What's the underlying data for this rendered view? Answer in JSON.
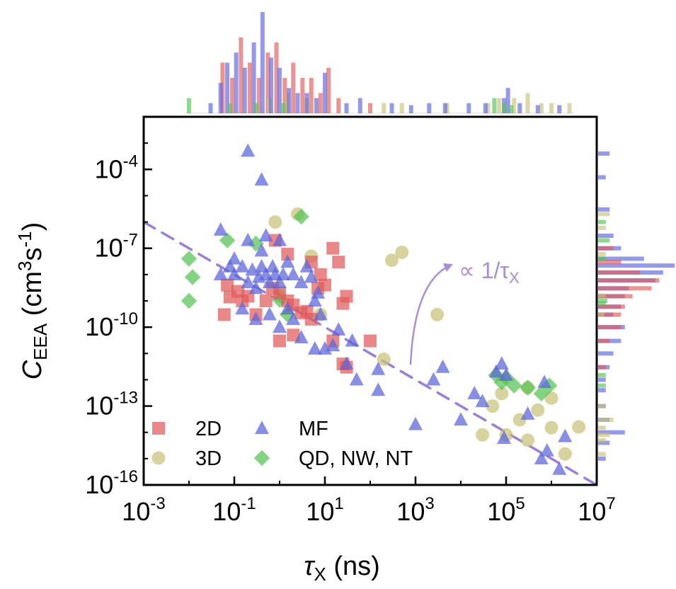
{
  "chart_data": {
    "type": "scatter",
    "title": "",
    "xlabel": {
      "main": "τ",
      "sub": "X",
      "rest": " (ns)"
    },
    "ylabel": {
      "main": "C",
      "sub": "EEA",
      "rest": " (cm",
      "sup": "3",
      "rest2": "s",
      "sup2": "-1",
      "close": ")"
    },
    "x_scale": "log",
    "y_scale": "log",
    "xlim": [
      0.001,
      10000000
    ],
    "ylim": [
      1e-16,
      0.01
    ],
    "x_ticks": [
      {
        "base": "10",
        "exp": "-3",
        "value": 0.001
      },
      {
        "base": "10",
        "exp": "-1",
        "value": 0.1
      },
      {
        "base": "10",
        "exp": "1",
        "value": 10
      },
      {
        "base": "10",
        "exp": "3",
        "value": 1000
      },
      {
        "base": "10",
        "exp": "5",
        "value": 100000
      },
      {
        "base": "10",
        "exp": "7",
        "value": 10000000
      }
    ],
    "y_ticks": [
      {
        "base": "10",
        "exp": "-16",
        "value": 1e-16
      },
      {
        "base": "10",
        "exp": "-13",
        "value": 1e-13
      },
      {
        "base": "10",
        "exp": "-10",
        "value": 1e-10
      },
      {
        "base": "10",
        "exp": "-7",
        "value": 1e-07
      },
      {
        "base": "10",
        "exp": "-4",
        "value": 0.0001
      }
    ],
    "grid": false,
    "legend_position": "bottom-left",
    "annotation": {
      "text": "∝ 1/τ",
      "sub": "X",
      "color": "#a98fcf"
    },
    "trend_line": {
      "style": "dashed",
      "color": "#9b7fd0",
      "points": [
        [
          0.001,
          1e-06
        ],
        [
          10000000,
          1e-16
        ]
      ]
    },
    "colors": {
      "2D": "#e05a5a",
      "3D": "#c8c27a",
      "MF": "#5a64d8",
      "QD": "#55c255"
    },
    "series": [
      {
        "name": "2D",
        "marker": "square",
        "color": "#e05a5a",
        "points": [
          [
            0.07,
            4e-09
          ],
          [
            0.08,
            1.4e-09
          ],
          [
            0.12,
            2.3e-09
          ],
          [
            0.15,
            1e-09
          ],
          [
            0.2,
            1.5e-09
          ],
          [
            0.06,
            3e-10
          ],
          [
            0.3,
            3e-10
          ],
          [
            0.5,
            1e-09
          ],
          [
            0.7,
            3e-09
          ],
          [
            1,
            2e-09
          ],
          [
            1.5,
            1e-09
          ],
          [
            2,
            7e-10
          ],
          [
            3,
            3.5e-10
          ],
          [
            4,
            4e-10
          ],
          [
            5,
            2e-10
          ],
          [
            7,
            3e-09
          ],
          [
            8,
            1e-08
          ],
          [
            10,
            4e-09
          ],
          [
            20,
            3e-08
          ],
          [
            25,
            8e-10
          ],
          [
            30,
            1.5e-09
          ],
          [
            0.8,
            2e-07
          ],
          [
            1.5,
            6e-08
          ],
          [
            5,
            3e-08
          ],
          [
            15,
            1e-07
          ],
          [
            1,
            3e-11
          ],
          [
            2,
            5e-11
          ],
          [
            15,
            3e-11
          ],
          [
            25,
            4e-12
          ],
          [
            30,
            3e-12
          ],
          [
            100,
            3e-11
          ]
        ]
      },
      {
        "name": "3D",
        "marker": "circle",
        "color": "#c8c27a",
        "points": [
          [
            0.8,
            1e-06
          ],
          [
            2.5,
            2e-06
          ],
          [
            1,
            1.6e-09
          ],
          [
            8,
            3e-10
          ],
          [
            5,
            5e-08
          ],
          [
            300,
            3.5e-08
          ],
          [
            500,
            7e-08
          ],
          [
            200,
            6e-12
          ],
          [
            3000,
            3e-10
          ],
          [
            30000,
            8e-15
          ],
          [
            50000,
            1e-13
          ],
          [
            80000,
            3e-13
          ],
          [
            100000,
            8e-15
          ],
          [
            300000,
            5e-15
          ],
          [
            300000,
            5e-13
          ],
          [
            500000,
            7e-14
          ],
          [
            1000000,
            2e-13
          ],
          [
            1000000,
            1.5e-14
          ],
          [
            2000000,
            1.5e-15
          ],
          [
            4000000,
            1.6e-14
          ],
          [
            200000,
            3e-14
          ]
        ]
      },
      {
        "name": "MF",
        "marker": "triangle",
        "color": "#5a64d8",
        "points": [
          [
            0.2,
            0.0005
          ],
          [
            0.4,
            4e-05
          ],
          [
            0.05,
            5e-07
          ],
          [
            0.1,
            1e-08
          ],
          [
            0.15,
            2e-08
          ],
          [
            0.2,
            5e-09
          ],
          [
            0.25,
            1.5e-08
          ],
          [
            0.3,
            3e-09
          ],
          [
            0.35,
            8e-09
          ],
          [
            0.4,
            2e-08
          ],
          [
            0.5,
            1e-08
          ],
          [
            0.6,
            5e-09
          ],
          [
            0.7,
            2e-08
          ],
          [
            0.8,
            1e-08
          ],
          [
            1,
            5e-09
          ],
          [
            1.2,
            1e-08
          ],
          [
            1.5,
            3e-08
          ],
          [
            2,
            1e-08
          ],
          [
            3,
            5e-09
          ],
          [
            4,
            2e-08
          ],
          [
            5,
            8e-09
          ],
          [
            6,
            1e-09
          ],
          [
            7,
            2e-09
          ],
          [
            0.05,
            1e-08
          ],
          [
            0.08,
            2e-08
          ],
          [
            0.1,
            4e-08
          ],
          [
            0.2,
            2e-07
          ],
          [
            0.4,
            8e-08
          ],
          [
            0.5,
            3e-07
          ],
          [
            1,
            2e-07
          ],
          [
            0.15,
            5e-10
          ],
          [
            0.3,
            2e-10
          ],
          [
            0.6,
            3e-10
          ],
          [
            1,
            1e-10
          ],
          [
            1.5,
            5e-10
          ],
          [
            2,
            2e-10
          ],
          [
            3,
            4e-11
          ],
          [
            6,
            1.5e-11
          ],
          [
            8,
            3e-10
          ],
          [
            10,
            1.5e-11
          ],
          [
            15,
            2e-11
          ],
          [
            30,
            4e-12
          ],
          [
            50,
            1e-12
          ],
          [
            150,
            2.5e-12
          ],
          [
            150,
            4e-13
          ],
          [
            20,
            8e-11
          ],
          [
            40,
            3e-11
          ],
          [
            1000,
            2e-14
          ],
          [
            2500,
            1e-12
          ],
          [
            4000,
            3e-12
          ],
          [
            20000,
            3e-13
          ],
          [
            30000,
            1.5e-13
          ],
          [
            60000,
            2e-12
          ],
          [
            80000,
            4e-12
          ],
          [
            90000,
            6e-15
          ],
          [
            100000,
            1.5e-12
          ],
          [
            300000,
            5e-14
          ],
          [
            700000,
            8e-13
          ],
          [
            800000,
            2e-15
          ],
          [
            2000000,
            7e-15
          ],
          [
            1500000,
            4e-16
          ],
          [
            600000,
            1e-15
          ],
          [
            10000,
            3e-14
          ]
        ]
      },
      {
        "name": "QD, NW, NT",
        "marker": "diamond",
        "color": "#55c255",
        "points": [
          [
            0.01,
            4e-08
          ],
          [
            0.012,
            8e-09
          ],
          [
            0.01,
            1e-09
          ],
          [
            0.07,
            2e-07
          ],
          [
            0.3,
            1.5e-07
          ],
          [
            3,
            1.6e-06
          ],
          [
            1,
            1.1e-09
          ],
          [
            1.5,
            3e-10
          ],
          [
            60000,
            1.5e-12
          ],
          [
            80000,
            8e-13
          ],
          [
            100000,
            1.2e-12
          ],
          [
            150000,
            6e-13
          ],
          [
            300000,
            5e-13
          ],
          [
            600000,
            3e-13
          ],
          [
            900000,
            6e-13
          ]
        ]
      }
    ],
    "top_histogram": [
      {
        "name": "2D",
        "color": "#e05a5a",
        "bins": [
          [
            0.055,
            0.5
          ],
          [
            0.09,
            0.35
          ],
          [
            0.14,
            0.75
          ],
          [
            0.22,
            0.5
          ],
          [
            0.35,
            0.35
          ],
          [
            0.55,
            0.6
          ],
          [
            0.85,
            0.7
          ],
          [
            1.3,
            0.35
          ],
          [
            2,
            0.5
          ],
          [
            3.2,
            0.35
          ],
          [
            5,
            0.35
          ],
          [
            8,
            0.2
          ],
          [
            12,
            0.45
          ],
          [
            20,
            0.15
          ],
          [
            100,
            0.1
          ]
        ]
      },
      {
        "name": "3D",
        "color": "#c8c27a",
        "bins": [
          [
            0.6,
            0.15
          ],
          [
            1.5,
            0.2
          ],
          [
            4,
            0.15
          ],
          [
            200,
            0.1
          ],
          [
            500,
            0.1
          ],
          [
            5000,
            0.1
          ],
          [
            40000,
            0.1
          ],
          [
            70000,
            0.15
          ],
          [
            150000,
            0.15
          ],
          [
            300000,
            0.2
          ],
          [
            600000,
            0.1
          ],
          [
            1000000,
            0.1
          ],
          [
            2500000,
            0.1
          ]
        ]
      },
      {
        "name": "MF",
        "color": "#5a64d8",
        "bins": [
          [
            0.03,
            0.1
          ],
          [
            0.05,
            0.3
          ],
          [
            0.07,
            0.5
          ],
          [
            0.11,
            0.6
          ],
          [
            0.17,
            0.45
          ],
          [
            0.27,
            0.7
          ],
          [
            0.42,
            1.0
          ],
          [
            0.65,
            0.55
          ],
          [
            1,
            0.45
          ],
          [
            1.6,
            0.25
          ],
          [
            2.5,
            0.2
          ],
          [
            4,
            0.2
          ],
          [
            6.5,
            0.15
          ],
          [
            10,
            0.4
          ],
          [
            30,
            0.1
          ],
          [
            60,
            0.15
          ],
          [
            300,
            0.1
          ],
          [
            800,
            0.08
          ],
          [
            2000,
            0.1
          ],
          [
            4500,
            0.1
          ],
          [
            15000,
            0.1
          ],
          [
            35000,
            0.1
          ],
          [
            90000,
            0.15
          ],
          [
            110000,
            0.25
          ],
          [
            200000,
            0.1
          ],
          [
            500000,
            0.08
          ],
          [
            1500000,
            0.08
          ]
        ]
      },
      {
        "name": "QD, NW, NT",
        "color": "#55c255",
        "bins": [
          [
            0.01,
            0.15
          ],
          [
            0.08,
            0.1
          ],
          [
            0.3,
            0.1
          ],
          [
            1.2,
            0.1
          ],
          [
            55000,
            0.15
          ],
          [
            90000,
            0.1
          ],
          [
            130000,
            0.08
          ]
        ]
      }
    ],
    "right_histogram": [
      {
        "name": "MF",
        "color": "#5a64d8",
        "bins": [
          [
            0.0004,
            0.15
          ],
          [
            5e-05,
            0.1
          ],
          [
            3e-06,
            0.15
          ],
          [
            3e-07,
            0.2
          ],
          [
            1e-07,
            0.3
          ],
          [
            4e-08,
            0.6
          ],
          [
            2.2e-08,
            1.0
          ],
          [
            1.2e-08,
            0.85
          ],
          [
            6e-09,
            0.75
          ],
          [
            3e-09,
            0.4
          ],
          [
            1.5e-09,
            0.35
          ],
          [
            6e-10,
            0.3
          ],
          [
            3e-10,
            0.2
          ],
          [
            1e-10,
            0.35
          ],
          [
            3e-11,
            0.3
          ],
          [
            1e-11,
            0.2
          ],
          [
            3e-12,
            0.15
          ],
          [
            1e-12,
            0.1
          ],
          [
            4e-13,
            0.1
          ],
          [
            1e-13,
            0.1
          ],
          [
            3e-14,
            0.15
          ],
          [
            1e-14,
            0.35
          ],
          [
            4e-15,
            0.15
          ],
          [
            1e-15,
            0.1
          ]
        ]
      },
      {
        "name": "2D",
        "color": "#e05a5a",
        "bins": [
          [
            1e-07,
            0.2
          ],
          [
            3e-08,
            0.3
          ],
          [
            1.2e-08,
            0.55
          ],
          [
            6e-09,
            0.8
          ],
          [
            3e-09,
            0.7
          ],
          [
            1.5e-09,
            0.45
          ],
          [
            6e-10,
            0.35
          ],
          [
            3e-10,
            0.3
          ],
          [
            1e-10,
            0.3
          ],
          [
            3e-11,
            0.15
          ],
          [
            3e-12,
            0.1
          ]
        ]
      },
      {
        "name": "3D",
        "color": "#c8c27a",
        "bins": [
          [
            2e-06,
            0.15
          ],
          [
            6e-07,
            0.1
          ],
          [
            6e-08,
            0.1
          ],
          [
            1.6e-09,
            0.1
          ],
          [
            3e-10,
            0.08
          ],
          [
            3e-14,
            0.2
          ],
          [
            1.5e-14,
            0.1
          ],
          [
            8e-15,
            0.15
          ],
          [
            5e-15,
            0.1
          ],
          [
            1.5e-15,
            0.1
          ],
          [
            1e-13,
            0.1
          ]
        ]
      },
      {
        "name": "QD, NW, NT",
        "color": "#55c255",
        "bins": [
          [
            1e-06,
            0.1
          ],
          [
            2e-07,
            0.15
          ],
          [
            4e-08,
            0.1
          ],
          [
            1e-09,
            0.12
          ],
          [
            8e-10,
            0.1
          ],
          [
            1.5e-12,
            0.1
          ],
          [
            6e-13,
            0.1
          ]
        ]
      }
    ]
  }
}
